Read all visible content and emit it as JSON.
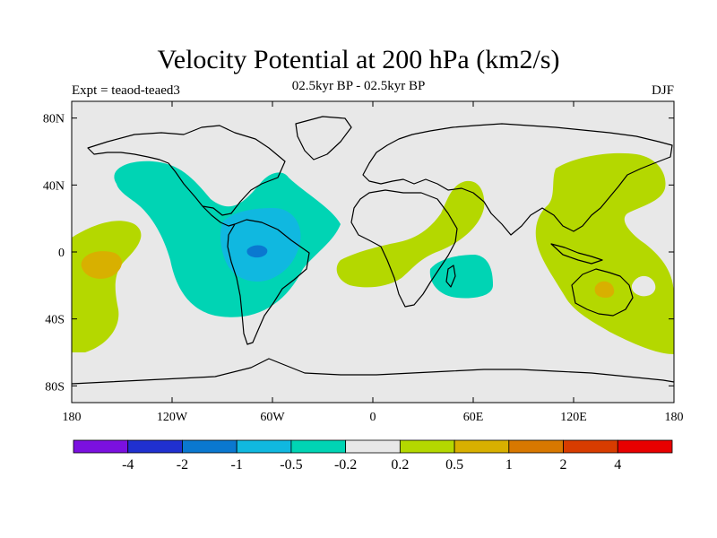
{
  "title": "Velocity Potential at 200 hPa (km2/s)",
  "left_label": "Expt = teaod-teaed3",
  "center_label": "02.5kyr BP - 02.5kyr BP",
  "right_label": "DJF",
  "map": {
    "projection": "cylindrical-equidistant",
    "lon_range": [
      -180,
      180
    ],
    "lat_range": [
      -90,
      90
    ],
    "background": "#e8e8e8",
    "coastline_color": "#000000",
    "lat_ticks": [
      {
        "value": 80,
        "label": "80N"
      },
      {
        "value": 40,
        "label": "40N"
      },
      {
        "value": 0,
        "label": "0"
      },
      {
        "value": -40,
        "label": "40S"
      },
      {
        "value": -80,
        "label": "80S"
      }
    ],
    "lon_ticks": [
      {
        "value": -180,
        "label": "180"
      },
      {
        "value": -120,
        "label": "120W"
      },
      {
        "value": -60,
        "label": "60W"
      },
      {
        "value": 0,
        "label": "0"
      },
      {
        "value": 60,
        "label": "60E"
      },
      {
        "value": 120,
        "label": "120E"
      },
      {
        "value": 180,
        "label": "180"
      }
    ]
  },
  "colorbar": {
    "colors": [
      "#7b10e0",
      "#2030d0",
      "#0a78d0",
      "#10b8e0",
      "#00d4b4",
      "#e8e8e8",
      "#b4d800",
      "#d8b000",
      "#d87800",
      "#d83c00",
      "#e80000"
    ],
    "labels": [
      "-4",
      "-2",
      "-1",
      "-0.5",
      "-0.2",
      "0.2",
      "0.5",
      "1",
      "2",
      "4"
    ]
  }
}
